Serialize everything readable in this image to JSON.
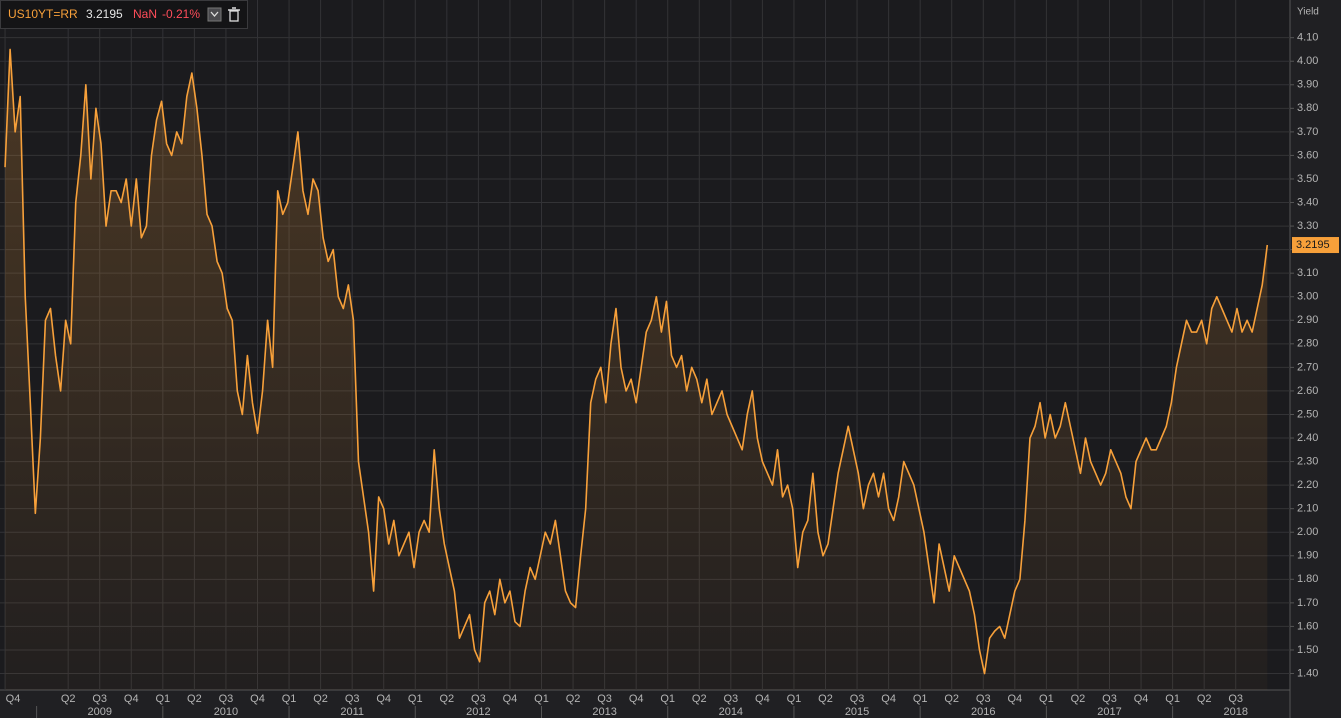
{
  "chart_data": {
    "type": "area",
    "y_axis_title": "Yield",
    "change": "NaN",
    "change_pct": "-0.21%",
    "xlim": [
      2008.71,
      2018.93
    ],
    "ylim": [
      1.33,
      4.26
    ],
    "grid": true,
    "x": [
      2008.75,
      2008.79,
      2008.83,
      2008.87,
      2008.91,
      2008.95,
      2008.99,
      2009.03,
      2009.07,
      2009.11,
      2009.15,
      2009.19,
      2009.23,
      2009.27,
      2009.31,
      2009.35,
      2009.39,
      2009.43,
      2009.47,
      2009.51,
      2009.55,
      2009.59,
      2009.63,
      2009.67,
      2009.71,
      2009.75,
      2009.79,
      2009.83,
      2009.87,
      2009.91,
      2009.95,
      2009.99,
      2010.03,
      2010.07,
      2010.11,
      2010.15,
      2010.19,
      2010.23,
      2010.27,
      2010.31,
      2010.35,
      2010.39,
      2010.43,
      2010.47,
      2010.51,
      2010.55,
      2010.59,
      2010.63,
      2010.67,
      2010.71,
      2010.75,
      2010.79,
      2010.83,
      2010.87,
      2010.91,
      2010.95,
      2010.99,
      2011.03,
      2011.07,
      2011.11,
      2011.15,
      2011.19,
      2011.23,
      2011.27,
      2011.31,
      2011.35,
      2011.39,
      2011.43,
      2011.47,
      2011.51,
      2011.55,
      2011.59,
      2011.63,
      2011.67,
      2011.71,
      2011.75,
      2011.79,
      2011.83,
      2011.87,
      2011.91,
      2011.95,
      2011.99,
      2012.03,
      2012.07,
      2012.11,
      2012.15,
      2012.19,
      2012.23,
      2012.27,
      2012.31,
      2012.35,
      2012.39,
      2012.43,
      2012.47,
      2012.51,
      2012.55,
      2012.59,
      2012.63,
      2012.67,
      2012.71,
      2012.75,
      2012.79,
      2012.83,
      2012.87,
      2012.91,
      2012.95,
      2012.99,
      2013.03,
      2013.07,
      2013.11,
      2013.15,
      2013.19,
      2013.23,
      2013.27,
      2013.31,
      2013.35,
      2013.39,
      2013.43,
      2013.47,
      2013.51,
      2013.55,
      2013.59,
      2013.63,
      2013.67,
      2013.71,
      2013.75,
      2013.79,
      2013.83,
      2013.87,
      2013.91,
      2013.95,
      2013.99,
      2014.03,
      2014.07,
      2014.11,
      2014.15,
      2014.19,
      2014.23,
      2014.27,
      2014.31,
      2014.35,
      2014.39,
      2014.43,
      2014.47,
      2014.51,
      2014.55,
      2014.59,
      2014.63,
      2014.67,
      2014.71,
      2014.75,
      2014.79,
      2014.83,
      2014.87,
      2014.91,
      2014.95,
      2014.99,
      2015.03,
      2015.07,
      2015.11,
      2015.15,
      2015.19,
      2015.23,
      2015.27,
      2015.31,
      2015.35,
      2015.39,
      2015.43,
      2015.47,
      2015.51,
      2015.55,
      2015.59,
      2015.63,
      2015.67,
      2015.71,
      2015.75,
      2015.79,
      2015.83,
      2015.87,
      2015.91,
      2015.95,
      2015.99,
      2016.03,
      2016.07,
      2016.11,
      2016.15,
      2016.19,
      2016.23,
      2016.27,
      2016.31,
      2016.35,
      2016.39,
      2016.43,
      2016.47,
      2016.51,
      2016.55,
      2016.59,
      2016.63,
      2016.67,
      2016.71,
      2016.75,
      2016.79,
      2016.83,
      2016.87,
      2016.91,
      2016.95,
      2016.99,
      2017.03,
      2017.07,
      2017.11,
      2017.15,
      2017.19,
      2017.23,
      2017.27,
      2017.31,
      2017.35,
      2017.39,
      2017.43,
      2017.47,
      2017.51,
      2017.55,
      2017.59,
      2017.63,
      2017.67,
      2017.71,
      2017.75,
      2017.79,
      2017.83,
      2017.87,
      2017.91,
      2017.95,
      2017.99,
      2018.03,
      2018.07,
      2018.11,
      2018.15,
      2018.19,
      2018.23,
      2018.27,
      2018.31,
      2018.35,
      2018.39,
      2018.43,
      2018.47,
      2018.51,
      2018.55,
      2018.59,
      2018.63,
      2018.67,
      2018.71,
      2018.75
    ],
    "series": [
      {
        "name": "US10YT=RR",
        "color": "#f7a03a",
        "values": [
          3.55,
          4.05,
          3.7,
          3.85,
          3.0,
          2.55,
          2.08,
          2.4,
          2.9,
          2.95,
          2.75,
          2.6,
          2.9,
          2.8,
          3.4,
          3.6,
          3.9,
          3.5,
          3.8,
          3.65,
          3.3,
          3.45,
          3.45,
          3.4,
          3.5,
          3.3,
          3.5,
          3.25,
          3.3,
          3.6,
          3.75,
          3.83,
          3.65,
          3.6,
          3.7,
          3.65,
          3.85,
          3.95,
          3.8,
          3.6,
          3.35,
          3.3,
          3.15,
          3.1,
          2.95,
          2.9,
          2.6,
          2.5,
          2.75,
          2.55,
          2.42,
          2.6,
          2.9,
          2.7,
          3.45,
          3.35,
          3.4,
          3.55,
          3.7,
          3.45,
          3.35,
          3.5,
          3.45,
          3.25,
          3.15,
          3.2,
          3.0,
          2.95,
          3.05,
          2.9,
          2.3,
          2.15,
          2.0,
          1.75,
          2.15,
          2.1,
          1.95,
          2.05,
          1.9,
          1.95,
          2.0,
          1.85,
          2.0,
          2.05,
          2.0,
          2.35,
          2.1,
          1.95,
          1.85,
          1.75,
          1.55,
          1.6,
          1.65,
          1.5,
          1.45,
          1.7,
          1.75,
          1.65,
          1.8,
          1.7,
          1.75,
          1.62,
          1.6,
          1.75,
          1.85,
          1.8,
          1.9,
          2.0,
          1.95,
          2.05,
          1.9,
          1.75,
          1.7,
          1.68,
          1.9,
          2.1,
          2.55,
          2.65,
          2.7,
          2.55,
          2.8,
          2.95,
          2.7,
          2.6,
          2.65,
          2.55,
          2.7,
          2.85,
          2.9,
          3.0,
          2.85,
          2.98,
          2.75,
          2.7,
          2.75,
          2.6,
          2.7,
          2.65,
          2.55,
          2.65,
          2.5,
          2.55,
          2.6,
          2.5,
          2.45,
          2.4,
          2.35,
          2.5,
          2.6,
          2.4,
          2.3,
          2.25,
          2.2,
          2.35,
          2.15,
          2.2,
          2.1,
          1.85,
          2.0,
          2.05,
          2.25,
          2.0,
          1.9,
          1.95,
          2.1,
          2.25,
          2.35,
          2.45,
          2.35,
          2.25,
          2.1,
          2.2,
          2.25,
          2.15,
          2.25,
          2.1,
          2.05,
          2.15,
          2.3,
          2.25,
          2.2,
          2.1,
          2.0,
          1.85,
          1.7,
          1.95,
          1.85,
          1.75,
          1.9,
          1.85,
          1.8,
          1.75,
          1.65,
          1.5,
          1.4,
          1.55,
          1.58,
          1.6,
          1.55,
          1.65,
          1.75,
          1.8,
          2.05,
          2.4,
          2.45,
          2.55,
          2.4,
          2.5,
          2.4,
          2.45,
          2.55,
          2.45,
          2.35,
          2.25,
          2.4,
          2.3,
          2.25,
          2.2,
          2.25,
          2.35,
          2.3,
          2.25,
          2.15,
          2.1,
          2.3,
          2.35,
          2.4,
          2.35,
          2.35,
          2.4,
          2.45,
          2.55,
          2.7,
          2.8,
          2.9,
          2.85,
          2.85,
          2.9,
          2.8,
          2.95,
          3.0,
          2.95,
          2.9,
          2.85,
          2.95,
          2.85,
          2.9,
          2.85,
          2.95,
          3.05,
          3.2195
        ]
      }
    ],
    "yticks": [
      {
        "value": 1.4,
        "label": "1.40"
      },
      {
        "value": 1.5,
        "label": "1.50"
      },
      {
        "value": 1.6,
        "label": "1.60"
      },
      {
        "value": 1.7,
        "label": "1.70"
      },
      {
        "value": 1.8,
        "label": "1.80"
      },
      {
        "value": 1.9,
        "label": "1.90"
      },
      {
        "value": 2.0,
        "label": "2.00"
      },
      {
        "value": 2.1,
        "label": "2.10"
      },
      {
        "value": 2.2,
        "label": "2.20"
      },
      {
        "value": 2.3,
        "label": "2.30"
      },
      {
        "value": 2.4,
        "label": "2.40"
      },
      {
        "value": 2.5,
        "label": "2.50"
      },
      {
        "value": 2.6,
        "label": "2.60"
      },
      {
        "value": 2.7,
        "label": "2.70"
      },
      {
        "value": 2.8,
        "label": "2.80"
      },
      {
        "value": 2.9,
        "label": "2.90"
      },
      {
        "value": 3.0,
        "label": "3.00"
      },
      {
        "value": 3.1,
        "label": "3.10"
      },
      {
        "value": 3.2,
        "label": "3.20"
      },
      {
        "value": 3.3,
        "label": "3.30"
      },
      {
        "value": 3.4,
        "label": "3.40"
      },
      {
        "value": 3.5,
        "label": "3.50"
      },
      {
        "value": 3.6,
        "label": "3.60"
      },
      {
        "value": 3.7,
        "label": "3.70"
      },
      {
        "value": 3.8,
        "label": "3.80"
      },
      {
        "value": 3.9,
        "label": "3.90"
      },
      {
        "value": 4.0,
        "label": "4.00"
      },
      {
        "value": 4.1,
        "label": "4.10"
      }
    ],
    "xticks": [
      {
        "value": 2008.75,
        "label": "Q4"
      },
      {
        "value": 2009.25,
        "label": "Q2"
      },
      {
        "value": 2009.5,
        "label": "Q3"
      },
      {
        "value": 2009.75,
        "label": "Q4"
      },
      {
        "value": 2010,
        "label": "Q1"
      },
      {
        "value": 2010.25,
        "label": "Q2"
      },
      {
        "value": 2010.5,
        "label": "Q3"
      },
      {
        "value": 2010.75,
        "label": "Q4"
      },
      {
        "value": 2011,
        "label": "Q1"
      },
      {
        "value": 2011.25,
        "label": "Q2"
      },
      {
        "value": 2011.5,
        "label": "Q3"
      },
      {
        "value": 2011.75,
        "label": "Q4"
      },
      {
        "value": 2012,
        "label": "Q1"
      },
      {
        "value": 2012.25,
        "label": "Q2"
      },
      {
        "value": 2012.5,
        "label": "Q3"
      },
      {
        "value": 2012.75,
        "label": "Q4"
      },
      {
        "value": 2013,
        "label": "Q1"
      },
      {
        "value": 2013.25,
        "label": "Q2"
      },
      {
        "value": 2013.5,
        "label": "Q3"
      },
      {
        "value": 2013.75,
        "label": "Q4"
      },
      {
        "value": 2014,
        "label": "Q1"
      },
      {
        "value": 2014.25,
        "label": "Q2"
      },
      {
        "value": 2014.5,
        "label": "Q3"
      },
      {
        "value": 2014.75,
        "label": "Q4"
      },
      {
        "value": 2015,
        "label": "Q1"
      },
      {
        "value": 2015.25,
        "label": "Q2"
      },
      {
        "value": 2015.5,
        "label": "Q3"
      },
      {
        "value": 2015.75,
        "label": "Q4"
      },
      {
        "value": 2016,
        "label": "Q1"
      },
      {
        "value": 2016.25,
        "label": "Q2"
      },
      {
        "value": 2016.5,
        "label": "Q3"
      },
      {
        "value": 2016.75,
        "label": "Q4"
      },
      {
        "value": 2017,
        "label": "Q1"
      },
      {
        "value": 2017.25,
        "label": "Q2"
      },
      {
        "value": 2017.5,
        "label": "Q3"
      },
      {
        "value": 2017.75,
        "label": "Q4"
      },
      {
        "value": 2018,
        "label": "Q1"
      },
      {
        "value": 2018.25,
        "label": "Q2"
      },
      {
        "value": 2018.5,
        "label": "Q3"
      }
    ],
    "x_years": [
      2009,
      2010,
      2011,
      2012,
      2013,
      2014,
      2015,
      2016,
      2017,
      2018
    ]
  }
}
